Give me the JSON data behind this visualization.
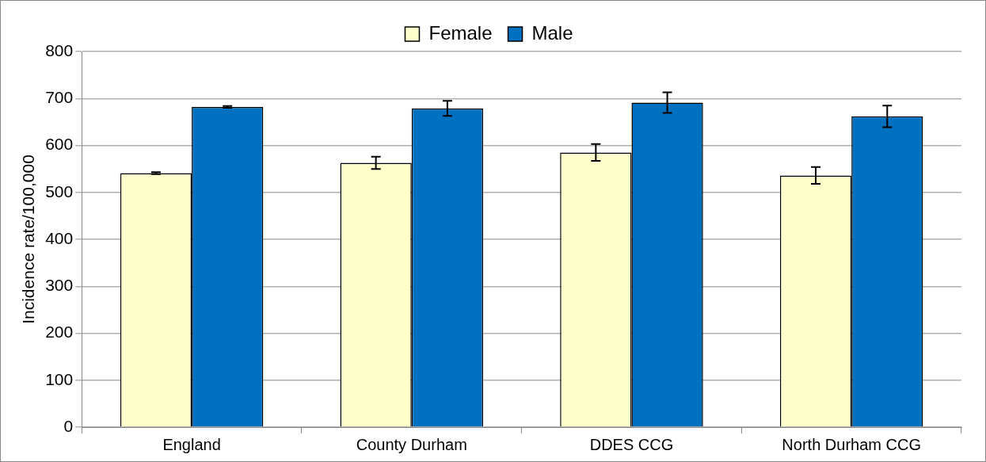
{
  "chart_data": {
    "type": "bar",
    "ylabel": "Incidence rate/100,000",
    "categories": [
      "England",
      "County Durham",
      "DDES CCG",
      "North Durham CCG"
    ],
    "series": [
      {
        "name": "Female",
        "color": "#ffffcc",
        "values": [
          541,
          563,
          585,
          536
        ],
        "errors": [
          2,
          13,
          18,
          18
        ]
      },
      {
        "name": "Male",
        "color": "#0070c0",
        "values": [
          682,
          679,
          691,
          662
        ],
        "errors": [
          2,
          16,
          22,
          23
        ]
      }
    ],
    "ylim": [
      0,
      800
    ],
    "yticks": [
      0,
      100,
      200,
      300,
      400,
      500,
      600,
      700,
      800
    ],
    "grid": "y",
    "legend": "top"
  }
}
